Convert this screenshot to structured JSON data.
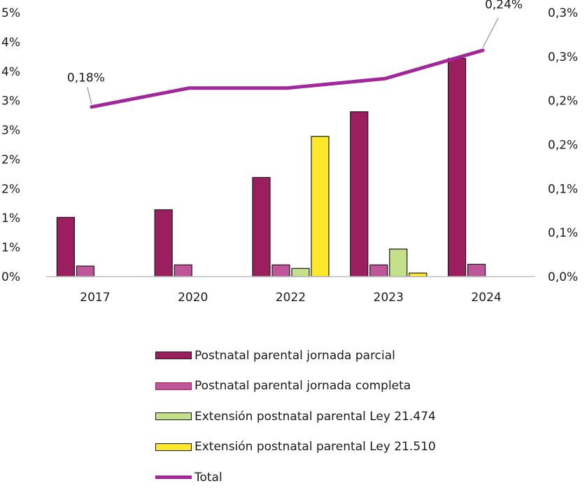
{
  "chart_data": {
    "type": "bar",
    "categories": [
      "2017",
      "2020",
      "2022",
      "2023",
      "2024"
    ],
    "left_axis": {
      "ylim": [
        0,
        0.045
      ],
      "tick_labels": [
        "0%",
        "1%",
        "1%",
        "2%",
        "2%",
        "3%",
        "3%",
        "4%",
        "4%",
        "5%"
      ]
    },
    "right_axis": {
      "ylim": [
        0,
        0.0028
      ],
      "tick_labels": [
        "0,0%",
        "0,1%",
        "0,1%",
        "0,2%",
        "0,2%",
        "0,3%",
        "0,3%"
      ]
    },
    "series": [
      {
        "name": "Postnatal parental jornada parcial",
        "kind": "bar",
        "axis": "left",
        "color": "#9b1f5e",
        "values": [
          0.0101,
          0.0114,
          0.0169,
          0.0281,
          0.0372
        ]
      },
      {
        "name": "Postnatal parental jornada completa",
        "kind": "bar",
        "axis": "left",
        "color": "#c0569a",
        "values": [
          0.0018,
          0.002,
          0.002,
          0.002,
          0.0021
        ]
      },
      {
        "name": "Extensión postnatal parental Ley 21.474",
        "kind": "bar",
        "axis": "left",
        "color": "#c5e08a",
        "values": [
          null,
          null,
          0.0014,
          0.0047,
          null
        ]
      },
      {
        "name": "Extensión postnatal parental Ley 21.510",
        "kind": "bar",
        "axis": "left",
        "color": "#ffe82a",
        "values": [
          null,
          null,
          0.0239,
          0.0006,
          null
        ]
      },
      {
        "name": "Total",
        "kind": "line",
        "axis": "right",
        "color": "#a0289b",
        "values": [
          0.0018,
          0.002,
          0.002,
          0.0021,
          0.0024
        ]
      }
    ],
    "annotations": [
      {
        "category": "2017",
        "text": "0,18%"
      },
      {
        "category": "2024",
        "text": "0,24%"
      }
    ],
    "grid": false,
    "legend_position": "bottom"
  }
}
